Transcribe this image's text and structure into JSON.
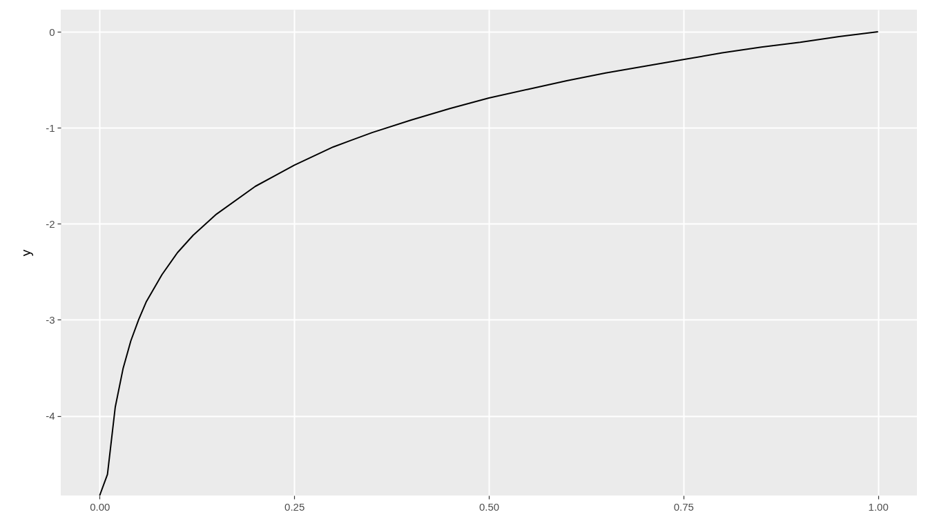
{
  "chart_data": {
    "type": "line",
    "ylabel": "y",
    "x": [
      0,
      0.01,
      0.02,
      0.03,
      0.04,
      0.05,
      0.06,
      0.08,
      0.1,
      0.12,
      0.15,
      0.2,
      0.25,
      0.3,
      0.35,
      0.4,
      0.45,
      0.5,
      0.55,
      0.6,
      0.65,
      0.7,
      0.75,
      0.8,
      0.85,
      0.9,
      0.95,
      1
    ],
    "series": [
      {
        "color": "#000000",
        "values": [
          -4.83,
          -4.61,
          -3.91,
          -3.51,
          -3.22,
          -3.0,
          -2.81,
          -2.53,
          -2.3,
          -2.12,
          -1.9,
          -1.61,
          -1.39,
          -1.2,
          -1.05,
          -0.92,
          -0.8,
          -0.69,
          -0.6,
          -0.51,
          -0.43,
          -0.36,
          -0.29,
          -0.22,
          -0.16,
          -0.11,
          -0.05,
          0
        ]
      }
    ],
    "xlim": [
      -0.05,
      1.05
    ],
    "ylim": [
      -4.83,
      0.23
    ],
    "xticks": [
      {
        "value": 0,
        "label": "0.00"
      },
      {
        "value": 0.25,
        "label": "0.25"
      },
      {
        "value": 0.5,
        "label": "0.50"
      },
      {
        "value": 0.75,
        "label": "0.75"
      },
      {
        "value": 1,
        "label": "1.00"
      }
    ],
    "yticks": [
      -4,
      -3,
      -2,
      -1,
      0
    ],
    "grid": true,
    "line_style": "solid"
  }
}
